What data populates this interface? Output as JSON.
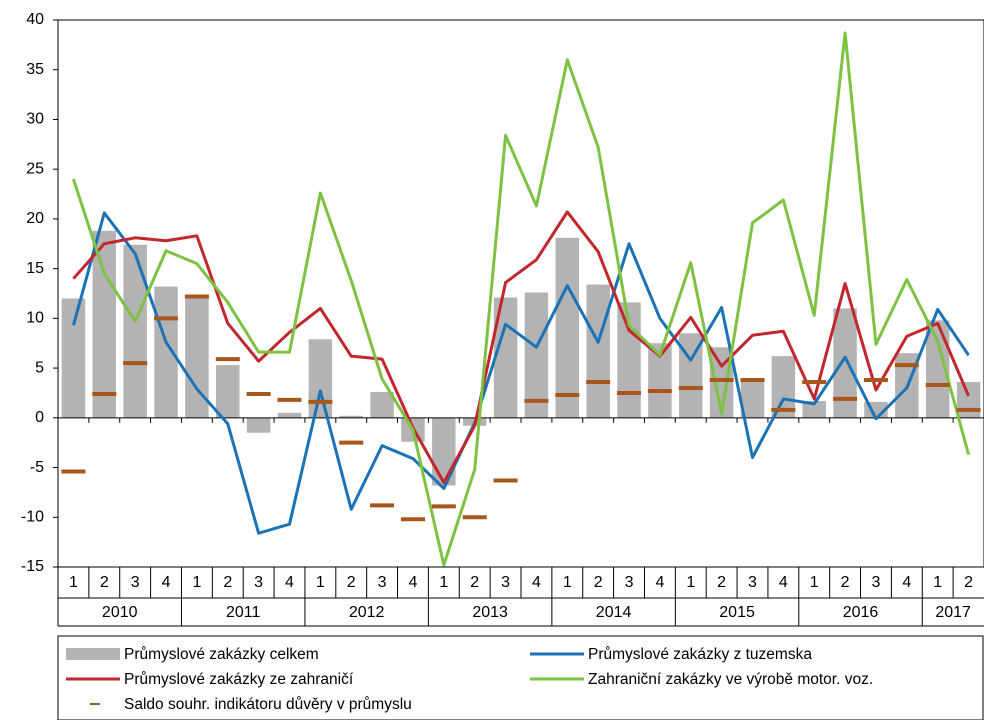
{
  "chart_data": {
    "type": "combo",
    "categories": [
      "1",
      "2",
      "3",
      "4",
      "1",
      "2",
      "3",
      "4",
      "1",
      "2",
      "3",
      "4",
      "1",
      "2",
      "3",
      "4",
      "1",
      "2",
      "3",
      "4",
      "1",
      "2",
      "3",
      "4",
      "1",
      "2",
      "3",
      "4",
      "1",
      "2"
    ],
    "years": [
      "2010",
      "2011",
      "2012",
      "2013",
      "2014",
      "2015",
      "2016",
      "2017"
    ],
    "ylim": [
      -15,
      40
    ],
    "yticks": [
      -15,
      -10,
      -5,
      0,
      5,
      10,
      15,
      20,
      25,
      30,
      35,
      40
    ],
    "series": [
      {
        "name": "Průmyslové zakázky celkem",
        "kind": "bar",
        "color": "#b3b3b3",
        "values": [
          12,
          18.8,
          17.4,
          13.2,
          12,
          5.3,
          -1.5,
          0.5,
          7.9,
          0.2,
          2.6,
          -2.4,
          -6.8,
          -0.8,
          12.1,
          12.6,
          18.1,
          13.4,
          11.6,
          7.5,
          8.5,
          7.1,
          3.8,
          6.2,
          1.7,
          11,
          1.6,
          6.5,
          9.8,
          3.6
        ]
      },
      {
        "name": "Průmyslové zakázky z tuzemska",
        "kind": "line",
        "color": "#1b72b5",
        "values": [
          9.3,
          20.6,
          16.5,
          7.6,
          2.9,
          -0.6,
          -11.6,
          -10.7,
          2.7,
          -9.2,
          -2.8,
          -4.1,
          -7.1,
          -0.5,
          9.4,
          7.1,
          13.3,
          7.6,
          17.5,
          10,
          5.8,
          11.1,
          -4,
          1.9,
          1.4,
          6.1,
          -0.1,
          3,
          10.9,
          6.3
        ]
      },
      {
        "name": "Průmyslové zakázky ze zahraničí",
        "kind": "line",
        "color": "#c1272d",
        "values": [
          14,
          17.5,
          18.1,
          17.8,
          18.3,
          9.5,
          5.7,
          8.6,
          11,
          6.2,
          5.9,
          -1,
          -6.5,
          -0.8,
          13.6,
          15.9,
          20.7,
          16.7,
          8.8,
          6.2,
          10.1,
          5.2,
          8.3,
          8.7,
          1.9,
          13.5,
          2.8,
          8.2,
          9.5,
          2.2
        ]
      },
      {
        "name": "Zahraniční zakázky ve výrobě motor. voz.",
        "kind": "line",
        "color": "#7dc242",
        "values": [
          24,
          14.5,
          9.7,
          16.8,
          15.5,
          11.6,
          6.6,
          6.6,
          22.6,
          13.8,
          3.9,
          -1.2,
          -14.8,
          -5.2,
          28.4,
          21.3,
          36,
          27.2,
          9.3,
          6.3,
          15.6,
          0.4,
          19.6,
          21.9,
          10.3,
          38.7,
          7.4,
          13.9,
          7.7,
          -3.7
        ]
      },
      {
        "name": "Saldo souhr. indikátoru důvěry v průmyslu",
        "kind": "dash",
        "color": "#a8561b",
        "values": [
          -5.4,
          2.4,
          5.5,
          10,
          12.2,
          5.9,
          2.4,
          1.8,
          1.6,
          -2.5,
          -8.8,
          -10.2,
          -8.9,
          -10,
          -6.3,
          1.7,
          2.3,
          3.6,
          2.5,
          2.7,
          3,
          3.8,
          3.8,
          0.8,
          3.6,
          1.9,
          3.8,
          5.3,
          3.3,
          0.8
        ]
      }
    ]
  }
}
